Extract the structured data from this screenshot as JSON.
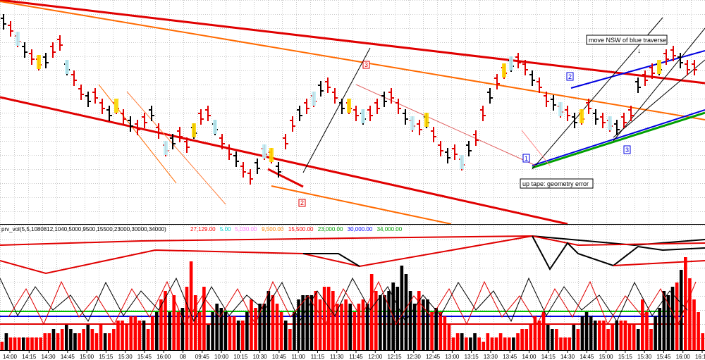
{
  "chart_data": {
    "type": "bar",
    "panels": [
      "price",
      "prv_vol"
    ],
    "grid": true,
    "x_axis": {
      "tick_labels": [
        "14:00",
        "14:15",
        "14:30",
        "14:45",
        "15:00",
        "15:15",
        "15:30",
        "15:45",
        "16:00",
        "08",
        "09:45",
        "10:00",
        "10:15",
        "10:30",
        "10:45",
        "11:00",
        "11:15",
        "11:30",
        "11:45",
        "12:00",
        "12:15",
        "12:30",
        "12:45",
        "13:00",
        "13:15",
        "13:30",
        "13:45",
        "14:00",
        "14:15",
        "14:30",
        "14:45",
        "15:00",
        "15:15",
        "15:30",
        "15:45",
        "16:00",
        "16:15"
      ]
    },
    "price_annotations": {
      "boxes_red": [
        "3",
        "2"
      ],
      "boxes_blue": [
        "1",
        "2",
        "3"
      ],
      "text_notes": [
        "move NSW of blue traverse",
        "up tape: geometry error"
      ],
      "arrow_marker": "↓"
    },
    "indicator": {
      "name": "prv_vol",
      "params": "(5,5,1080812,1040,5000,9500,15500,23000,30000,34000)",
      "levels": [
        {
          "label": "27,129.00",
          "color": "#ff0000"
        },
        {
          "label": "5.00",
          "color": "#00d0d0"
        },
        {
          "label": "5,030.00",
          "color": "#ff80ff"
        },
        {
          "label": "9,500.00",
          "color": "#ff8000"
        },
        {
          "label": "15,500.00",
          "color": "#ff0000"
        },
        {
          "label": "23,000.00",
          "color": "#00a000"
        },
        {
          "label": "30,000.00",
          "color": "#0000ff"
        },
        {
          "label": "34,000.00",
          "color": "#00a000"
        }
      ]
    },
    "volume_bars": [
      [
        2,
        "r"
      ],
      [
        4,
        "k"
      ],
      [
        3,
        "r"
      ],
      [
        3,
        "r"
      ],
      [
        3,
        "r"
      ],
      [
        3,
        "k"
      ],
      [
        3,
        "r"
      ],
      [
        3,
        "r"
      ],
      [
        3,
        "r"
      ],
      [
        3,
        "r"
      ],
      [
        4,
        "r"
      ],
      [
        4,
        "r"
      ],
      [
        5,
        "k"
      ],
      [
        4,
        "r"
      ],
      [
        5,
        "r"
      ],
      [
        6,
        "k"
      ],
      [
        5,
        "k"
      ],
      [
        4,
        "k"
      ],
      [
        4,
        "r"
      ],
      [
        5,
        "r"
      ],
      [
        6,
        "k"
      ],
      [
        5,
        "r"
      ],
      [
        4,
        "r"
      ],
      [
        6,
        "r"
      ],
      [
        4,
        "k"
      ],
      [
        4,
        "r"
      ],
      [
        5,
        "r"
      ],
      [
        7,
        "r"
      ],
      [
        7,
        "r"
      ],
      [
        6,
        "r"
      ],
      [
        8,
        "r"
      ],
      [
        8,
        "r"
      ],
      [
        7,
        "r"
      ],
      [
        7,
        "k"
      ],
      [
        5,
        "r"
      ],
      [
        8,
        "r"
      ],
      [
        9,
        "k"
      ],
      [
        12,
        "r"
      ],
      [
        14,
        "r"
      ],
      [
        9,
        "k"
      ],
      [
        13,
        "r"
      ],
      [
        9,
        "r"
      ],
      [
        10,
        "k"
      ],
      [
        15,
        "r"
      ],
      [
        21,
        "r"
      ],
      [
        13,
        "r"
      ],
      [
        9,
        "r"
      ],
      [
        15,
        "r"
      ],
      [
        6,
        "k"
      ],
      [
        9,
        "k"
      ],
      [
        11,
        "k"
      ],
      [
        10,
        "k"
      ],
      [
        9,
        "k"
      ],
      [
        8,
        "r"
      ],
      [
        8,
        "r"
      ],
      [
        7,
        "k"
      ],
      [
        7,
        "r"
      ],
      [
        9,
        "k"
      ],
      [
        12,
        "r"
      ],
      [
        10,
        "r"
      ],
      [
        11,
        "k"
      ],
      [
        11,
        "k"
      ],
      [
        14,
        "k"
      ],
      [
        13,
        "r"
      ],
      [
        11,
        "r"
      ],
      [
        9,
        "r"
      ],
      [
        7,
        "k"
      ],
      [
        5,
        "r"
      ],
      [
        9,
        "k"
      ],
      [
        12,
        "k"
      ],
      [
        13,
        "k"
      ],
      [
        13,
        "k"
      ],
      [
        13,
        "k"
      ],
      [
        14,
        "r"
      ],
      [
        12,
        "r"
      ],
      [
        15,
        "r"
      ],
      [
        15,
        "r"
      ],
      [
        14,
        "r"
      ],
      [
        11,
        "r"
      ],
      [
        11,
        "r"
      ],
      [
        12,
        "r"
      ],
      [
        11,
        "k"
      ],
      [
        9,
        "r"
      ],
      [
        11,
        "r"
      ],
      [
        12,
        "r"
      ],
      [
        11,
        "k"
      ],
      [
        18,
        "r"
      ],
      [
        14,
        "r"
      ],
      [
        13,
        "k"
      ],
      [
        13,
        "k"
      ],
      [
        14,
        "k"
      ],
      [
        16,
        "k"
      ],
      [
        15,
        "k"
      ],
      [
        20,
        "k"
      ],
      [
        18,
        "k"
      ],
      [
        14,
        "k"
      ],
      [
        11,
        "k"
      ],
      [
        14,
        "r"
      ],
      [
        12,
        "k"
      ],
      [
        12,
        "k"
      ],
      [
        9,
        "r"
      ],
      [
        10,
        "k"
      ],
      [
        9,
        "r"
      ],
      [
        8,
        "r"
      ],
      [
        6,
        "r"
      ],
      [
        3,
        "r"
      ],
      [
        4,
        "r"
      ],
      [
        4,
        "k"
      ],
      [
        3,
        "r"
      ],
      [
        3,
        "k"
      ],
      [
        4,
        "k"
      ],
      [
        3,
        "r"
      ],
      [
        2,
        "r"
      ],
      [
        4,
        "r"
      ],
      [
        3,
        "r"
      ],
      [
        3,
        "r"
      ],
      [
        4,
        "r"
      ],
      [
        3,
        "r"
      ],
      [
        3,
        "r"
      ],
      [
        3,
        "k"
      ],
      [
        4,
        "r"
      ],
      [
        5,
        "r"
      ],
      [
        5,
        "r"
      ],
      [
        6,
        "r"
      ],
      [
        8,
        "r"
      ],
      [
        7,
        "r"
      ],
      [
        9,
        "r"
      ],
      [
        6,
        "k"
      ],
      [
        5,
        "k"
      ],
      [
        5,
        "r"
      ],
      [
        3,
        "r"
      ],
      [
        3,
        "r"
      ],
      [
        3,
        "r"
      ],
      [
        6,
        "k"
      ],
      [
        5,
        "r"
      ],
      [
        8,
        "k"
      ],
      [
        9,
        "k"
      ],
      [
        8,
        "k"
      ],
      [
        7,
        "k"
      ],
      [
        7,
        "r"
      ],
      [
        7,
        "r"
      ],
      [
        5,
        "r"
      ],
      [
        6,
        "r"
      ],
      [
        7,
        "k"
      ],
      [
        7,
        "r"
      ],
      [
        7,
        "r"
      ],
      [
        6,
        "r"
      ],
      [
        6,
        "r"
      ],
      [
        5,
        "k"
      ],
      [
        12,
        "r"
      ],
      [
        9,
        "r"
      ],
      [
        5,
        "r"
      ],
      [
        8,
        "k"
      ],
      [
        10,
        "k"
      ],
      [
        14,
        "k"
      ],
      [
        13,
        "k"
      ],
      [
        15,
        "k"
      ],
      [
        16,
        "r"
      ],
      [
        19,
        "k"
      ],
      [
        22,
        "r"
      ],
      [
        17,
        "r"
      ],
      [
        12,
        "r"
      ],
      [
        9,
        "r"
      ],
      [
        4,
        "r"
      ]
    ]
  }
}
